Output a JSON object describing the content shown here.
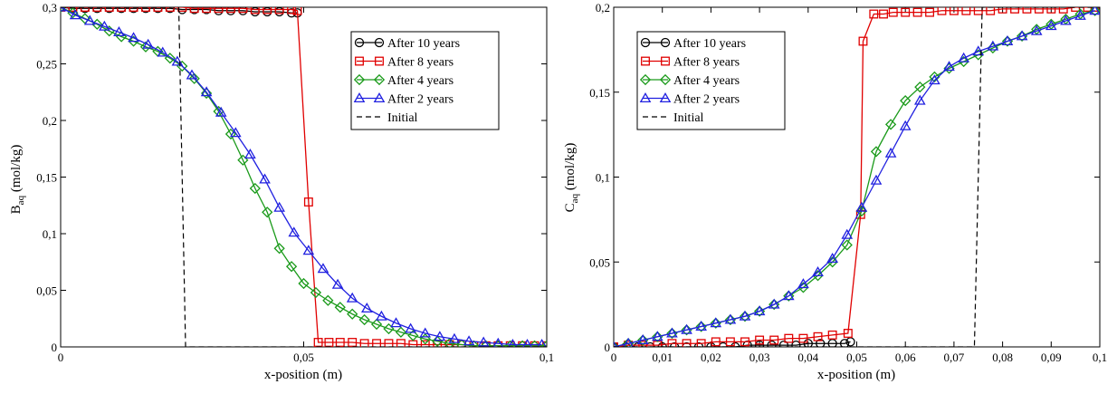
{
  "chart_data": [
    {
      "type": "line",
      "xlabel": "x-position (m)",
      "ylabel_main": "B",
      "ylabel_sub": "aq",
      "ylabel_unit": " (mol/kg)",
      "xlim": [
        0,
        0.1
      ],
      "ylim": [
        0,
        0.3
      ],
      "xticks": [
        0,
        0.05,
        0.1
      ],
      "xtick_labels": [
        "0",
        "0,05",
        "0,1"
      ],
      "yticks": [
        0,
        0.05,
        0.1,
        0.15,
        0.2,
        0.25,
        0.3
      ],
      "ytick_labels": [
        "0",
        "0,05",
        "0,1",
        "0,15",
        "0,2",
        "0,25",
        "0,3"
      ],
      "legend_position": "top-right",
      "series": [
        {
          "name": "After 10 years",
          "color": "#000000",
          "marker": "circle",
          "dashed": false,
          "x": [
            0,
            0.0025,
            0.005,
            0.0075,
            0.01,
            0.0125,
            0.015,
            0.0175,
            0.02,
            0.0225,
            0.025,
            0.0275,
            0.03,
            0.0325,
            0.035,
            0.0375,
            0.04,
            0.0425,
            0.045,
            0.0475,
            0.0487
          ],
          "y": [
            0.3,
            0.299,
            0.299,
            0.299,
            0.299,
            0.299,
            0.299,
            0.299,
            0.299,
            0.299,
            0.298,
            0.298,
            0.298,
            0.297,
            0.297,
            0.297,
            0.296,
            0.296,
            0.296,
            0.295,
            0.295
          ]
        },
        {
          "name": "After 8 years",
          "color": "#e00000",
          "marker": "square",
          "dashed": false,
          "x": [
            0,
            0.0025,
            0.005,
            0.0075,
            0.01,
            0.0125,
            0.015,
            0.0175,
            0.02,
            0.0225,
            0.025,
            0.0275,
            0.03,
            0.0325,
            0.035,
            0.0375,
            0.04,
            0.0425,
            0.045,
            0.0475,
            0.0487,
            0.051,
            0.053,
            0.0552,
            0.0575,
            0.06,
            0.0625,
            0.065,
            0.0675,
            0.07,
            0.0725,
            0.075,
            0.0775,
            0.08,
            0.0825,
            0.085,
            0.0875,
            0.09,
            0.0925,
            0.095,
            0.0975,
            0.1
          ],
          "y": [
            0.3,
            0.3,
            0.3,
            0.3,
            0.3,
            0.3,
            0.3,
            0.3,
            0.3,
            0.3,
            0.3,
            0.299,
            0.299,
            0.299,
            0.299,
            0.299,
            0.298,
            0.298,
            0.298,
            0.298,
            0.297,
            0.128,
            0.004,
            0.004,
            0.004,
            0.004,
            0.003,
            0.003,
            0.003,
            0.003,
            0.002,
            0.002,
            0.002,
            0.002,
            0.002,
            0.001,
            0.001,
            0.001,
            0.001,
            0.001,
            0.001,
            0.001
          ]
        },
        {
          "name": "After 4 years",
          "color": "#1a9a1a",
          "marker": "diamond",
          "dashed": false,
          "x": [
            0,
            0.0025,
            0.005,
            0.0075,
            0.01,
            0.0125,
            0.015,
            0.0175,
            0.02,
            0.0225,
            0.025,
            0.0275,
            0.03,
            0.0325,
            0.035,
            0.0375,
            0.04,
            0.0425,
            0.045,
            0.0475,
            0.05,
            0.0525,
            0.055,
            0.0575,
            0.06,
            0.0625,
            0.065,
            0.0675,
            0.07,
            0.0725,
            0.075,
            0.0775,
            0.08,
            0.0825,
            0.085,
            0.0875,
            0.09,
            0.0925,
            0.095,
            0.0975,
            0.1
          ],
          "y": [
            0.3,
            0.295,
            0.29,
            0.285,
            0.279,
            0.274,
            0.27,
            0.265,
            0.261,
            0.255,
            0.248,
            0.237,
            0.224,
            0.208,
            0.188,
            0.165,
            0.14,
            0.119,
            0.087,
            0.071,
            0.056,
            0.048,
            0.041,
            0.035,
            0.029,
            0.024,
            0.02,
            0.016,
            0.013,
            0.01,
            0.007,
            0.005,
            0.003,
            0.002,
            0.001,
            0.001,
            0.001,
            0.001,
            0.001,
            0.001,
            0.001
          ]
        },
        {
          "name": "After 2 years",
          "color": "#2020e0",
          "marker": "triangle",
          "dashed": false,
          "x": [
            0,
            0.003,
            0.006,
            0.009,
            0.012,
            0.015,
            0.018,
            0.021,
            0.024,
            0.027,
            0.03,
            0.033,
            0.036,
            0.039,
            0.042,
            0.045,
            0.048,
            0.051,
            0.054,
            0.057,
            0.06,
            0.063,
            0.066,
            0.069,
            0.072,
            0.075,
            0.078,
            0.081,
            0.084,
            0.087,
            0.09,
            0.093,
            0.096,
            0.099
          ],
          "y": [
            0.3,
            0.293,
            0.288,
            0.283,
            0.278,
            0.273,
            0.267,
            0.26,
            0.252,
            0.24,
            0.225,
            0.207,
            0.189,
            0.17,
            0.148,
            0.123,
            0.101,
            0.085,
            0.069,
            0.055,
            0.043,
            0.034,
            0.027,
            0.021,
            0.016,
            0.012,
            0.009,
            0.007,
            0.005,
            0.004,
            0.003,
            0.002,
            0.002,
            0.002
          ]
        },
        {
          "name": "Initial",
          "color": "#000000",
          "marker": "none",
          "dashed": true,
          "x": [
            0,
            0.0243,
            0.0257,
            0.1
          ],
          "y": [
            0.3,
            0.3,
            0,
            0
          ]
        }
      ]
    },
    {
      "type": "line",
      "xlabel": "x-position (m)",
      "ylabel_main": "C",
      "ylabel_sub": "aq",
      "ylabel_unit": " (mol/kg)",
      "xlim": [
        0,
        0.1
      ],
      "ylim": [
        0,
        0.2
      ],
      "xticks": [
        0,
        0.01,
        0.02,
        0.03,
        0.04,
        0.05,
        0.06,
        0.07,
        0.08,
        0.09,
        0.1
      ],
      "xtick_labels": [
        "0",
        "0,01",
        "0,02",
        "0,03",
        "0,04",
        "0,05",
        "0,06",
        "0,07",
        "0,08",
        "0,09",
        "0,1"
      ],
      "yticks": [
        0,
        0.05,
        0.1,
        0.15,
        0.2
      ],
      "ytick_labels": [
        "0",
        "0,05",
        "0,1",
        "0,15",
        "0,2"
      ],
      "legend_position": "top-left",
      "series": [
        {
          "name": "After 10 years",
          "color": "#000000",
          "marker": "circle",
          "dashed": false,
          "x": [
            0,
            0.0025,
            0.005,
            0.0075,
            0.01,
            0.0125,
            0.015,
            0.0175,
            0.02,
            0.0225,
            0.025,
            0.0275,
            0.03,
            0.0325,
            0.035,
            0.0375,
            0.04,
            0.0425,
            0.045,
            0.0475,
            0.0487
          ],
          "y": [
            0,
            0,
            0,
            0,
            0,
            0,
            0,
            0,
            0,
            0,
            0,
            0.001,
            0.001,
            0.001,
            0.001,
            0.001,
            0.002,
            0.002,
            0.002,
            0.002,
            0.003
          ]
        },
        {
          "name": "After 8 years",
          "color": "#e00000",
          "marker": "square",
          "dashed": false,
          "x": [
            0,
            0.003,
            0.006,
            0.009,
            0.012,
            0.015,
            0.018,
            0.021,
            0.024,
            0.027,
            0.03,
            0.033,
            0.036,
            0.039,
            0.042,
            0.045,
            0.0482,
            0.0508,
            0.0513,
            0.0535,
            0.0555,
            0.0575,
            0.06,
            0.0625,
            0.065,
            0.0675,
            0.07,
            0.0725,
            0.075,
            0.0775,
            0.08,
            0.0825,
            0.085,
            0.0875,
            0.09,
            0.0925,
            0.095,
            0.0975,
            0.099
          ],
          "y": [
            0,
            0.001,
            0.001,
            0.001,
            0.002,
            0.002,
            0.002,
            0.003,
            0.003,
            0.003,
            0.004,
            0.004,
            0.005,
            0.005,
            0.006,
            0.007,
            0.008,
            0.078,
            0.18,
            0.196,
            0.196,
            0.197,
            0.197,
            0.197,
            0.197,
            0.198,
            0.198,
            0.198,
            0.198,
            0.198,
            0.199,
            0.199,
            0.199,
            0.199,
            0.199,
            0.199,
            0.2,
            0.2,
            0.2
          ]
        },
        {
          "name": "After 4 years",
          "color": "#1a9a1a",
          "marker": "diamond",
          "dashed": false,
          "x": [
            0,
            0.003,
            0.006,
            0.009,
            0.012,
            0.015,
            0.018,
            0.021,
            0.024,
            0.027,
            0.03,
            0.033,
            0.036,
            0.039,
            0.042,
            0.045,
            0.048,
            0.051,
            0.054,
            0.057,
            0.06,
            0.063,
            0.066,
            0.069,
            0.072,
            0.075,
            0.078,
            0.081,
            0.084,
            0.087,
            0.09,
            0.093,
            0.096,
            0.099
          ],
          "y": [
            0,
            0.002,
            0.004,
            0.006,
            0.008,
            0.01,
            0.012,
            0.014,
            0.016,
            0.018,
            0.021,
            0.025,
            0.03,
            0.035,
            0.042,
            0.05,
            0.06,
            0.08,
            0.115,
            0.131,
            0.145,
            0.153,
            0.159,
            0.164,
            0.168,
            0.172,
            0.176,
            0.18,
            0.183,
            0.187,
            0.19,
            0.193,
            0.196,
            0.198
          ]
        },
        {
          "name": "After 2 years",
          "color": "#2020e0",
          "marker": "triangle",
          "dashed": false,
          "x": [
            0,
            0.003,
            0.006,
            0.009,
            0.012,
            0.015,
            0.018,
            0.021,
            0.024,
            0.027,
            0.03,
            0.033,
            0.036,
            0.039,
            0.042,
            0.045,
            0.048,
            0.051,
            0.054,
            0.057,
            0.06,
            0.063,
            0.066,
            0.069,
            0.072,
            0.075,
            0.078,
            0.081,
            0.084,
            0.087,
            0.09,
            0.093,
            0.096,
            0.099
          ],
          "y": [
            0,
            0.002,
            0.004,
            0.006,
            0.008,
            0.01,
            0.012,
            0.014,
            0.016,
            0.018,
            0.021,
            0.025,
            0.03,
            0.037,
            0.044,
            0.052,
            0.066,
            0.082,
            0.098,
            0.114,
            0.13,
            0.145,
            0.157,
            0.165,
            0.17,
            0.174,
            0.177,
            0.18,
            0.183,
            0.186,
            0.189,
            0.192,
            0.195,
            0.198
          ]
        },
        {
          "name": "Initial",
          "color": "#000000",
          "marker": "none",
          "dashed": true,
          "x": [
            0,
            0.0742,
            0.0758,
            0.1
          ],
          "y": [
            0,
            0,
            0.2,
            0.2
          ]
        }
      ]
    }
  ]
}
